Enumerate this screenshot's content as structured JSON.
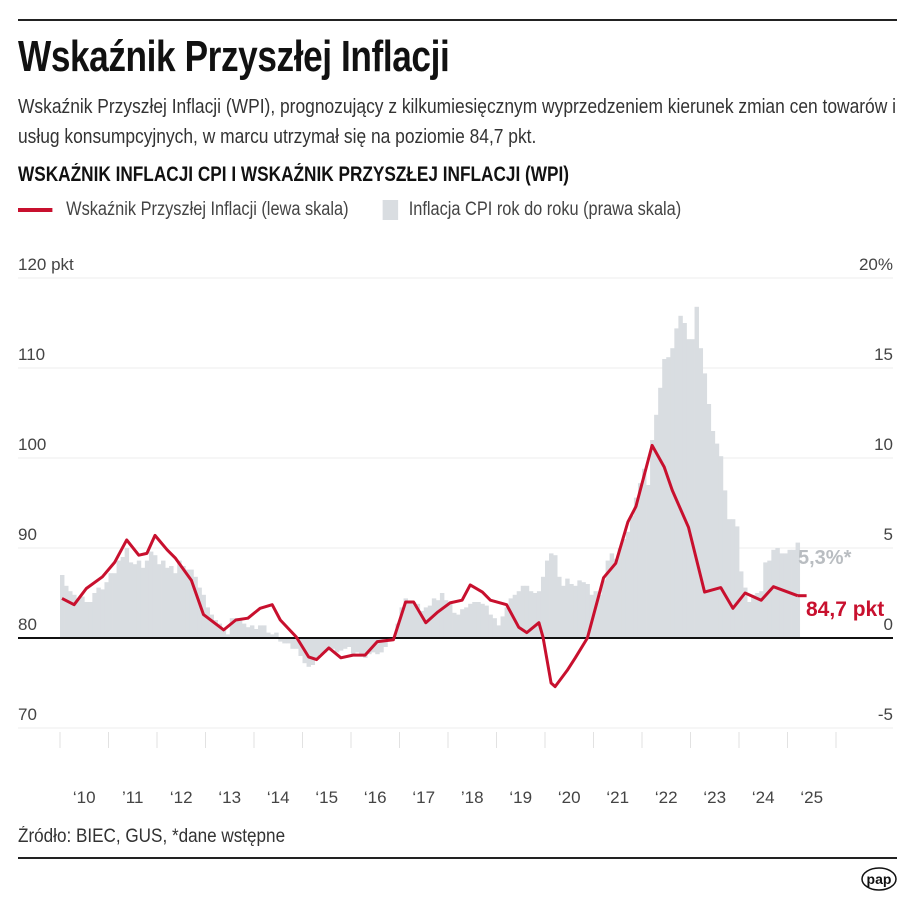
{
  "header": {
    "title": "Wskaźnik Przyszłej Inflacji",
    "subtitle": "Wskaźnik Przyszłej Inflacji (WPI), prognozujący z kilkumiesięcznym wyprzedzeniem kierunek zmian cen towarów i usług konsumpcyjnych, w marcu utrzymał się na poziomie 84,7 pkt."
  },
  "footer": {
    "source": "Źródło: BIEC, GUS, *dane wstępne",
    "logo_text": "pap"
  },
  "colors": {
    "wpi_line": "#c8102e",
    "cpi_bars": "#d9dde1",
    "annotation_cpi": "#b9bdc1"
  },
  "chart_data": {
    "type": "bar+line",
    "title": "WSKAŹNIK INFLACJI CPI I WSKAŹNIK PRZYSZŁEJ INFLACJI (WPI)",
    "legend_placement": "top-left",
    "grid": true,
    "left_axis": {
      "ticks": [
        "120 pkt",
        "110",
        "100",
        "90",
        "80",
        "70"
      ],
      "tick_values": [
        120,
        110,
        100,
        90,
        80,
        70
      ],
      "range": [
        70,
        120
      ]
    },
    "right_axis": {
      "ticks": [
        "20%",
        "15",
        "10",
        "5",
        "0",
        "-5"
      ],
      "tick_values": [
        20,
        15,
        10,
        5,
        0,
        -5
      ],
      "range": [
        -5,
        20
      ]
    },
    "x_axis": {
      "ticks": [
        "‘10",
        "’11",
        "‘12",
        "‘13",
        "‘14",
        "‘15",
        "‘16",
        "‘17",
        "’18",
        "‘19",
        "‘20",
        "‘21",
        "‘22",
        "‘23",
        "‘24",
        "‘25"
      ],
      "start_year": 2010,
      "end_year": 2026
    },
    "annotations": {
      "cpi_last": "5,3%*",
      "wpi_last": "84,7 pkt"
    },
    "series": [
      {
        "name": "Wskaźnik Przyszłej Inflacji (lewa skala)",
        "type": "line",
        "axis": "left",
        "points": [
          [
            "2010-01",
            84.4
          ],
          [
            "2010-04",
            83.7
          ],
          [
            "2010-07",
            85.5
          ],
          [
            "2010-11",
            86.8
          ],
          [
            "2011-02",
            88.4
          ],
          [
            "2011-05",
            90.9
          ],
          [
            "2011-08",
            89.2
          ],
          [
            "2011-10",
            89.4
          ],
          [
            "2011-12",
            91.4
          ],
          [
            "2012-03",
            89.8
          ],
          [
            "2012-05",
            88.9
          ],
          [
            "2012-09",
            86.4
          ],
          [
            "2012-12",
            82.6
          ],
          [
            "2013-05",
            80.9
          ],
          [
            "2013-08",
            82.0
          ],
          [
            "2013-11",
            82.2
          ],
          [
            "2014-02",
            83.3
          ],
          [
            "2014-05",
            83.7
          ],
          [
            "2014-07",
            82.0
          ],
          [
            "2014-11",
            80.1
          ],
          [
            "2015-02",
            77.9
          ],
          [
            "2015-04",
            77.6
          ],
          [
            "2015-07",
            78.9
          ],
          [
            "2015-10",
            77.8
          ],
          [
            "2016-01",
            78.1
          ],
          [
            "2016-04",
            78.1
          ],
          [
            "2016-07",
            79.6
          ],
          [
            "2016-11",
            79.8
          ],
          [
            "2017-02",
            84.0
          ],
          [
            "2017-04",
            84.0
          ],
          [
            "2017-07",
            81.7
          ],
          [
            "2017-10",
            82.9
          ],
          [
            "2018-01",
            83.9
          ],
          [
            "2018-04",
            84.2
          ],
          [
            "2018-06",
            85.9
          ],
          [
            "2018-09",
            85.1
          ],
          [
            "2018-11",
            84.2
          ],
          [
            "2019-03",
            83.7
          ],
          [
            "2019-06",
            81.2
          ],
          [
            "2019-08",
            80.6
          ],
          [
            "2019-11",
            81.7
          ],
          [
            "2019-12",
            80.1
          ],
          [
            "2020-02",
            75.0
          ],
          [
            "2020-03",
            74.6
          ],
          [
            "2020-06",
            76.4
          ],
          [
            "2020-08",
            77.8
          ],
          [
            "2020-11",
            80.0
          ],
          [
            "2021-03",
            86.7
          ],
          [
            "2021-06",
            88.3
          ],
          [
            "2021-09",
            92.9
          ],
          [
            "2021-11",
            94.6
          ],
          [
            "2022-03",
            101.4
          ],
          [
            "2022-06",
            99.0
          ],
          [
            "2022-08",
            96.4
          ],
          [
            "2022-12",
            92.3
          ],
          [
            "2023-04",
            85.1
          ],
          [
            "2023-08",
            85.6
          ],
          [
            "2023-11",
            83.3
          ],
          [
            "2024-02",
            85.0
          ],
          [
            "2024-06",
            84.2
          ],
          [
            "2024-09",
            85.7
          ],
          [
            "2025-03",
            84.7
          ]
        ]
      },
      {
        "name": "Inflacja CPI rok do roku (prawa skala)",
        "type": "bar",
        "axis": "right",
        "start": "2010-01",
        "values": [
          3.5,
          2.9,
          2.6,
          2.4,
          2.2,
          2.3,
          2.0,
          2.0,
          2.5,
          2.8,
          2.7,
          3.1,
          3.6,
          3.6,
          4.3,
          4.5,
          5.0,
          4.2,
          4.1,
          4.3,
          3.9,
          4.3,
          4.8,
          4.6,
          4.1,
          4.3,
          3.9,
          4.0,
          3.6,
          4.3,
          4.0,
          3.8,
          3.8,
          3.4,
          2.8,
          2.4,
          1.7,
          1.3,
          1.0,
          0.8,
          0.5,
          0.2,
          1.1,
          1.1,
          1.0,
          0.8,
          0.6,
          0.7,
          0.5,
          0.7,
          0.7,
          0.3,
          0.2,
          0.3,
          -0.2,
          -0.3,
          -0.3,
          -0.6,
          -0.6,
          -1.0,
          -1.4,
          -1.6,
          -1.5,
          -1.1,
          -0.9,
          -0.8,
          -0.7,
          -0.6,
          -0.8,
          -0.7,
          -0.6,
          -0.5,
          -0.9,
          -0.8,
          -0.9,
          -1.1,
          -0.9,
          -0.8,
          -0.9,
          -0.8,
          -0.5,
          -0.2,
          0.0,
          0.8,
          1.7,
          2.2,
          2.0,
          2.0,
          1.9,
          1.5,
          1.7,
          1.8,
          2.2,
          2.1,
          2.5,
          2.1,
          1.9,
          1.4,
          1.3,
          1.6,
          1.7,
          1.9,
          2.0,
          2.0,
          1.9,
          1.8,
          1.3,
          1.1,
          0.7,
          1.2,
          1.7,
          2.2,
          2.4,
          2.6,
          2.9,
          2.9,
          2.6,
          2.5,
          2.6,
          3.4,
          4.3,
          4.7,
          4.6,
          3.4,
          2.9,
          3.3,
          3.0,
          2.9,
          3.2,
          3.1,
          3.0,
          2.4,
          2.6,
          2.4,
          3.2,
          4.3,
          4.7,
          4.4,
          5.0,
          5.5,
          5.9,
          6.8,
          7.8,
          8.6,
          9.4,
          8.5,
          11.0,
          12.4,
          13.9,
          15.5,
          15.6,
          16.1,
          17.2,
          17.9,
          17.5,
          16.6,
          16.6,
          18.4,
          16.1,
          14.7,
          13.0,
          11.5,
          10.8,
          10.1,
          8.2,
          6.6,
          6.6,
          6.2,
          3.7,
          2.8,
          2.0,
          2.4,
          2.5,
          2.6,
          4.2,
          4.3,
          4.9,
          5.0,
          4.7,
          4.7,
          4.9,
          4.9,
          5.3
        ]
      }
    ]
  }
}
